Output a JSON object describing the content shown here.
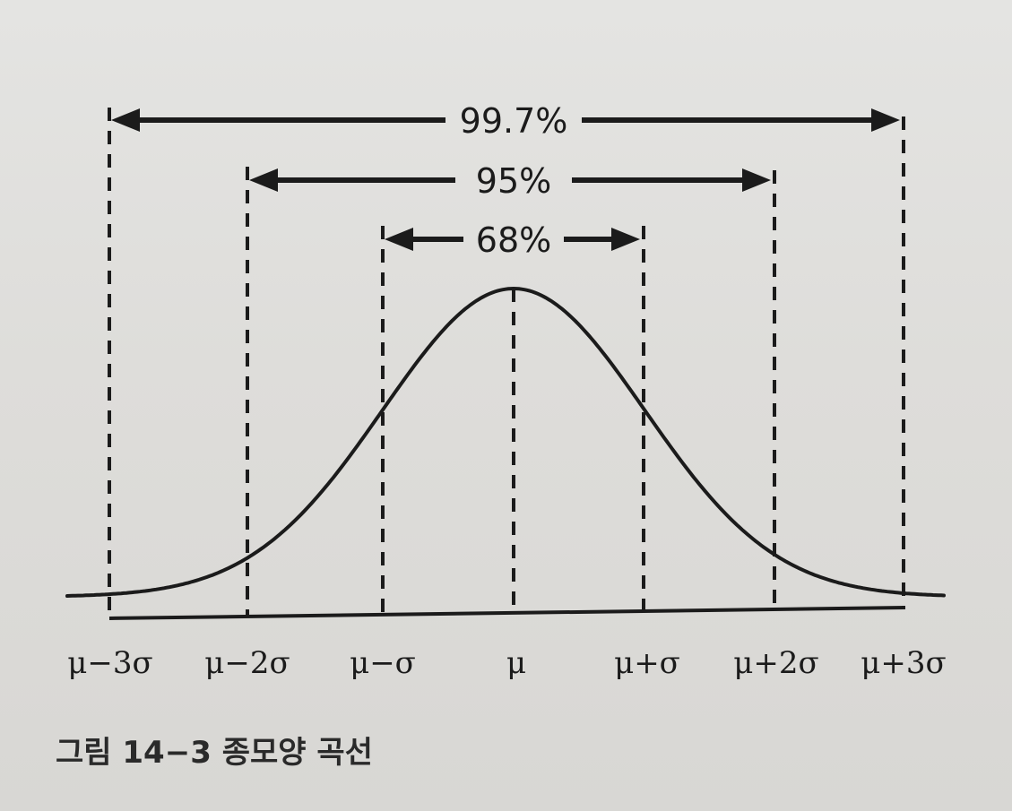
{
  "figure": {
    "ranges": [
      {
        "label": "99.7%",
        "from": -3,
        "to": 3
      },
      {
        "label": "95%",
        "from": -2,
        "to": 2
      },
      {
        "label": "68%",
        "from": -1,
        "to": 1
      }
    ],
    "tick_labels": [
      "μ−3σ",
      "μ−2σ",
      "μ−σ",
      "μ",
      "μ+σ",
      "μ+2σ",
      "μ+3σ"
    ],
    "caption": "그림 14−3 종모양 곡선"
  },
  "colors": {
    "ink": "#1b1b1b",
    "paper": "#dfdedb"
  }
}
